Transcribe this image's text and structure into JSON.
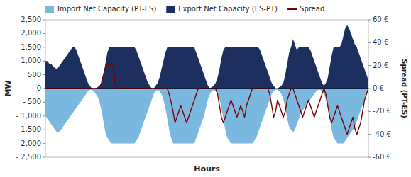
{
  "chart_data": {
    "type": "area",
    "xlabel": "Hours",
    "ylabel": "MW",
    "y2label": "Spread (PT-ES)",
    "ylim": [
      -2500,
      2500
    ],
    "yticks": [
      {
        "value": -2500,
        "label": "- 2,500"
      },
      {
        "value": -2000,
        "label": "- 2,000"
      },
      {
        "value": -1500,
        "label": "- 1,500"
      },
      {
        "value": -1000,
        "label": "- 1,000"
      },
      {
        "value": -500,
        "label": "- 500"
      },
      0,
      500,
      {
        "value": 1000,
        "label": "1,000"
      },
      {
        "value": 1500,
        "label": "1,500"
      },
      {
        "value": 2000,
        "label": "2,000"
      },
      {
        "value": 2500,
        "label": "2,500"
      }
    ],
    "y2lim": [
      -60,
      60
    ],
    "y2ticks": [
      {
        "value": -60,
        "label": "-60 €"
      },
      {
        "value": -40,
        "label": "-40 €"
      },
      {
        "value": -20,
        "label": "-20 €"
      },
      {
        "value": 0,
        "label": "0 €"
      },
      {
        "value": 20,
        "label": "20 €"
      },
      {
        "value": 40,
        "label": "40 €"
      },
      {
        "value": 60,
        "label": "60 €"
      }
    ],
    "grid": false,
    "legend": "upper left",
    "tick_labels": "y",
    "series": [
      {
        "name": "Import Net Capacity (PT-ES)",
        "type": "area",
        "color": "#7BB8E0",
        "values": [
          -1000,
          -1100,
          -1200,
          -1300,
          -1400,
          -1500,
          -1600,
          -1600,
          -1500,
          -1400,
          -1300,
          -1200,
          -1100,
          -1000,
          -900,
          -800,
          -700,
          -600,
          -500,
          -400,
          -300,
          -200,
          -100,
          -50,
          -50,
          -100,
          -200,
          -300,
          -500,
          -800,
          -1200,
          -1600,
          -1800,
          -1900,
          -2000,
          -2000,
          -2000,
          -2000,
          -2000,
          -2000,
          -2000,
          -2000,
          -2000,
          -2000,
          -2000,
          -2000,
          -2000,
          -1900,
          -1800,
          -1600,
          -1400,
          -1200,
          -1000,
          -800,
          -600,
          -400,
          -200,
          -100,
          -50,
          -100,
          -200,
          -400,
          -700,
          -1100,
          -1500,
          -1800,
          -2000,
          -2000,
          -2000,
          -2000,
          -2000,
          -2000,
          -2000,
          -2000,
          -2000,
          -2000,
          -2000,
          -2000,
          -1800,
          -1600,
          -1400,
          -1200,
          -1000,
          -700,
          -400,
          -200,
          -100,
          -50,
          -100,
          -200,
          -400,
          -700,
          -1100,
          -1500,
          -1800,
          -1900,
          -2000,
          -2000,
          -2000,
          -2000,
          -2000,
          -2000,
          -2000,
          -2000,
          -2000,
          -2000,
          -2000,
          -2000,
          -1900,
          -1800,
          -1600,
          -1400,
          -1200,
          -1000,
          -800,
          -600,
          -400,
          -200,
          -100,
          -50,
          -50,
          -100,
          -200,
          -400,
          -700,
          -1100,
          -1400,
          -1500,
          -1600,
          -1500,
          -1300,
          -1100,
          -900,
          -800,
          -700,
          -600,
          -500,
          -400,
          -300,
          -200,
          -100,
          -50,
          -50,
          -100,
          -200,
          -400,
          -700,
          -1100,
          -1500,
          -1800,
          -1900,
          -2000,
          -2000,
          -2000,
          -2000,
          -1900,
          -1800,
          -1700,
          -1600,
          -1500,
          -1400,
          -1200,
          -1000,
          -800,
          -600,
          -400,
          -200,
          -100
        ]
      },
      {
        "name": "Export Net Capacity (ES-PT)",
        "type": "area",
        "color": "#1C2F5E",
        "values": [
          1000,
          1000,
          900,
          900,
          800,
          750,
          700,
          800,
          900,
          1000,
          1100,
          1200,
          1300,
          1400,
          1500,
          1500,
          1400,
          1200,
          1000,
          800,
          600,
          400,
          200,
          100,
          0,
          0,
          0,
          50,
          100,
          200,
          500,
          900,
          1300,
          1500,
          1500,
          1500,
          1500,
          1500,
          1500,
          1500,
          1500,
          1500,
          1500,
          1500,
          1500,
          1500,
          1500,
          1400,
          1200,
          1000,
          800,
          600,
          400,
          200,
          100,
          0,
          0,
          100,
          200,
          400,
          700,
          1000,
          1300,
          1500,
          1500,
          1500,
          1500,
          1500,
          1500,
          1500,
          1500,
          1500,
          1500,
          1500,
          1500,
          1500,
          1500,
          1500,
          1300,
          1100,
          900,
          700,
          500,
          300,
          100,
          0,
          50,
          100,
          200,
          400,
          700,
          1100,
          1400,
          1500,
          1500,
          1500,
          1500,
          1500,
          1500,
          1500,
          1500,
          1500,
          1500,
          1500,
          1500,
          1500,
          1500,
          1500,
          1500,
          1500,
          1500,
          1400,
          1200,
          1000,
          800,
          600,
          400,
          200,
          100,
          0,
          0,
          50,
          100,
          200,
          500,
          900,
          1300,
          1500,
          1800,
          1600,
          1400,
          1500,
          1500,
          1500,
          1500,
          1500,
          1500,
          1400,
          1200,
          1000,
          800,
          600,
          400,
          200,
          100,
          200,
          400,
          800,
          1200,
          1500,
          1500,
          1500,
          1500,
          1600,
          1900,
          2200,
          2300,
          2200,
          2000,
          1800,
          1600,
          1500,
          1300,
          1100,
          900,
          700,
          500,
          300
        ]
      },
      {
        "name": "Spread",
        "type": "line",
        "axis": "y2",
        "color": "#7B0000",
        "values": [
          0,
          0,
          0,
          0,
          0,
          0,
          0,
          0,
          0,
          0,
          0,
          0,
          0,
          0,
          0,
          0,
          0,
          0,
          0,
          0,
          0,
          0,
          0,
          0,
          0,
          0,
          0,
          0,
          0,
          5,
          12,
          18,
          22,
          20,
          22,
          20,
          5,
          0,
          0,
          0,
          0,
          0,
          0,
          0,
          0,
          0,
          0,
          0,
          0,
          0,
          0,
          0,
          0,
          0,
          0,
          0,
          0,
          0,
          0,
          0,
          0,
          0,
          0,
          0,
          -5,
          -12,
          -20,
          -30,
          -25,
          -20,
          -15,
          -20,
          -25,
          -30,
          -25,
          -20,
          -15,
          -10,
          -5,
          0,
          0,
          0,
          0,
          0,
          0,
          0,
          0,
          0,
          0,
          -5,
          -15,
          -25,
          -30,
          -25,
          -20,
          -15,
          -10,
          -15,
          -20,
          -25,
          -20,
          -15,
          -20,
          -25,
          -15,
          -10,
          -5,
          0,
          0,
          0,
          0,
          0,
          0,
          0,
          0,
          0,
          -5,
          -15,
          -25,
          -20,
          -10,
          -15,
          -20,
          -25,
          -20,
          -10,
          -5,
          0,
          0,
          -5,
          -10,
          -15,
          -20,
          -25,
          -20,
          -15,
          -10,
          -15,
          -20,
          -25,
          -20,
          -15,
          -10,
          -5,
          0,
          -5,
          -15,
          -25,
          -30,
          -25,
          -20,
          -15,
          -20,
          -25,
          -30,
          -35,
          -40,
          -35,
          -30,
          -25,
          -35,
          -40,
          -35,
          -30,
          -20,
          -10,
          -5,
          0
        ]
      }
    ]
  }
}
